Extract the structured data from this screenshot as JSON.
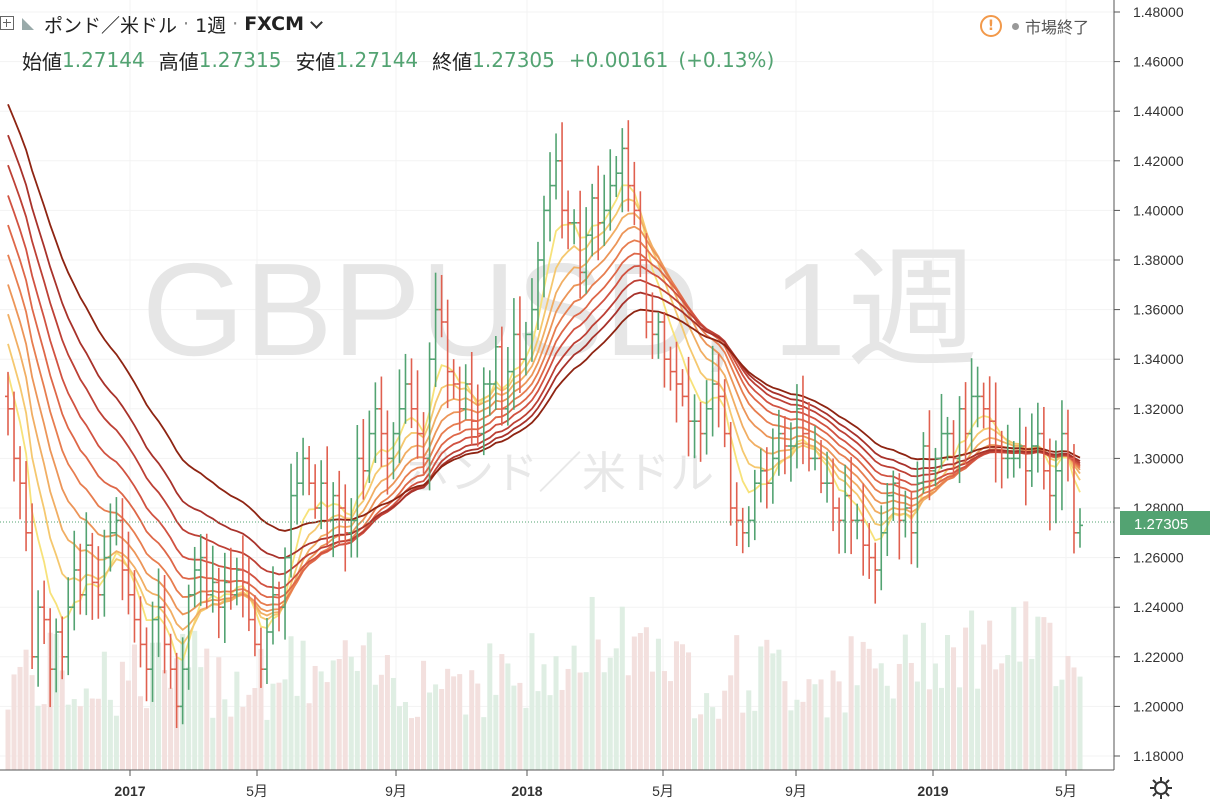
{
  "header": {
    "symbol_name": "ポンド／米ドル",
    "interval": "1週",
    "exchange": "FXCM",
    "ohlc": [
      {
        "label": "始値",
        "value": "1.27144"
      },
      {
        "label": "高値",
        "value": "1.27315"
      },
      {
        "label": "安値",
        "value": "1.27144"
      },
      {
        "label": "終値",
        "value": "1.27305"
      }
    ],
    "change": "+0.00161",
    "change_pct": "(+0.13%)",
    "market_status": "市場終了",
    "warn_icon": "exclamation-icon"
  },
  "watermark": {
    "line1": "GBPUSD, 1週",
    "line2": "ポンド／米ドル"
  },
  "colors": {
    "up": "#53a372",
    "down": "#e0604f",
    "ribbon": [
      "#f7e27a",
      "#f5c86f",
      "#f1ae63",
      "#ec9558",
      "#e77d4f",
      "#de6748",
      "#d15241",
      "#bd4035",
      "#a8322b",
      "#8e2412"
    ],
    "price_line": "#53a372"
  },
  "chart_data": {
    "type": "ohlc",
    "title": "GBPUSD, 1週",
    "y_axis": {
      "range": [
        1.17,
        1.49
      ],
      "ticks": [
        "1.48000",
        "1.46000",
        "1.44000",
        "1.42000",
        "1.40000",
        "1.38000",
        "1.36000",
        "1.34000",
        "1.32000",
        "1.30000",
        "1.28000",
        "1.26000",
        "1.24000",
        "1.22000",
        "1.20000",
        "1.18000"
      ]
    },
    "x_axis": {
      "ticks": [
        "2017",
        "5月",
        "9月",
        "2018",
        "5月",
        "9月",
        "2019",
        "5月"
      ]
    },
    "last_price": "1.27305",
    "weekly_close": [
      1.32,
      1.3,
      1.29,
      1.27,
      1.22,
      1.24,
      1.235,
      1.215,
      1.23,
      1.22,
      1.24,
      1.255,
      1.245,
      1.265,
      1.25,
      1.245,
      1.26,
      1.27,
      1.275,
      1.255,
      1.245,
      1.235,
      1.225,
      1.215,
      1.235,
      1.24,
      1.225,
      1.215,
      1.2,
      1.215,
      1.245,
      1.255,
      1.26,
      1.245,
      1.25,
      1.24,
      1.25,
      1.245,
      1.255,
      1.25,
      1.235,
      1.225,
      1.215,
      1.23,
      1.245,
      1.24,
      1.26,
      1.285,
      1.29,
      1.3,
      1.29,
      1.28,
      1.29,
      1.275,
      1.285,
      1.28,
      1.27,
      1.275,
      1.3,
      1.295,
      1.31,
      1.32,
      1.31,
      1.3,
      1.31,
      1.32,
      1.33,
      1.32,
      1.31,
      1.3,
      1.34,
      1.36,
      1.355,
      1.335,
      1.33,
      1.32,
      1.33,
      1.315,
      1.31,
      1.33,
      1.33,
      1.345,
      1.32,
      1.335,
      1.35,
      1.34,
      1.35,
      1.36,
      1.38,
      1.4,
      1.41,
      1.42,
      1.4,
      1.395,
      1.395,
      1.375,
      1.39,
      1.405,
      1.395,
      1.4,
      1.41,
      1.415,
      1.425,
      1.41,
      1.4,
      1.38,
      1.355,
      1.35,
      1.355,
      1.34,
      1.335,
      1.33,
      1.325,
      1.315,
      1.315,
      1.31,
      1.32,
      1.33,
      1.325,
      1.31,
      1.28,
      1.275,
      1.27,
      1.275,
      1.29,
      1.295,
      1.29,
      1.3,
      1.31,
      1.305,
      1.305,
      1.32,
      1.31,
      1.3,
      1.3,
      1.29,
      1.29,
      1.28,
      1.275,
      1.285,
      1.275,
      1.275,
      1.265,
      1.26,
      1.255,
      1.27,
      1.285,
      1.29,
      1.275,
      1.28,
      1.27,
      1.29,
      1.305,
      1.295,
      1.3,
      1.31,
      1.31,
      1.3,
      1.32,
      1.31,
      1.325,
      1.325,
      1.32,
      1.315,
      1.305,
      1.3,
      1.3,
      1.3,
      1.305,
      1.295,
      1.305,
      1.31,
      1.295,
      1.285,
      1.295,
      1.31,
      1.3,
      1.27,
      1.273
    ]
  }
}
